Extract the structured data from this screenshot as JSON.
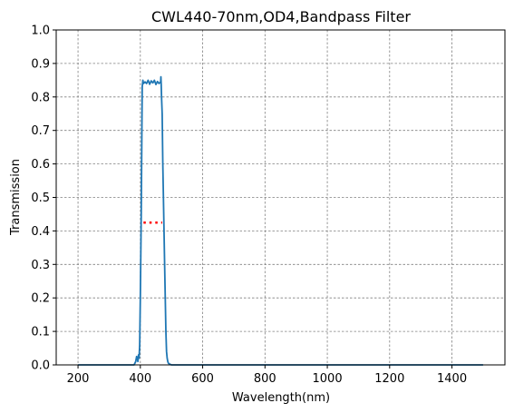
{
  "chart_data": {
    "type": "line",
    "title": "CWL440-70nm,OD4,Bandpass Filter",
    "xlabel": "Wavelength(nm)",
    "ylabel": "Transmission",
    "xlim": [
      130,
      1570
    ],
    "ylim": [
      0.0,
      1.0
    ],
    "xticks": [
      200,
      400,
      600,
      800,
      1000,
      1200,
      1400
    ],
    "yticks": [
      0.0,
      0.1,
      0.2,
      0.3,
      0.4,
      0.5,
      0.6,
      0.7,
      0.8,
      0.9,
      1.0
    ],
    "grid": true,
    "colors": {
      "series": "#1f77b4",
      "marker": "#ff0000",
      "grid": "#808080"
    },
    "series": [
      {
        "x": [
          200,
          380,
          385,
          388,
          390,
          392,
          394,
          396,
          398,
          400,
          403,
          405,
          406,
          408,
          410,
          415,
          420,
          425,
          430,
          435,
          440,
          445,
          450,
          455,
          460,
          465,
          466,
          467,
          468,
          470,
          472,
          475,
          478,
          480,
          482,
          484,
          486,
          488,
          490,
          495,
          500,
          520,
          600,
          800,
          1000,
          1200,
          1400,
          1500
        ],
        "y": [
          0.0,
          0.0,
          0.01,
          0.025,
          0.02,
          0.01,
          0.03,
          0.02,
          0.06,
          0.2,
          0.45,
          0.7,
          0.83,
          0.85,
          0.84,
          0.845,
          0.84,
          0.85,
          0.838,
          0.848,
          0.842,
          0.85,
          0.837,
          0.846,
          0.84,
          0.845,
          0.86,
          0.84,
          0.8,
          0.75,
          0.6,
          0.45,
          0.3,
          0.2,
          0.1,
          0.04,
          0.02,
          0.01,
          0.005,
          0.002,
          0.0,
          0.0,
          0.0,
          0.0,
          0.0,
          0.0,
          0.0,
          0.0
        ]
      },
      {
        "style": "dotted",
        "x": [
          410,
          470
        ],
        "y": [
          0.425,
          0.425
        ]
      }
    ]
  }
}
